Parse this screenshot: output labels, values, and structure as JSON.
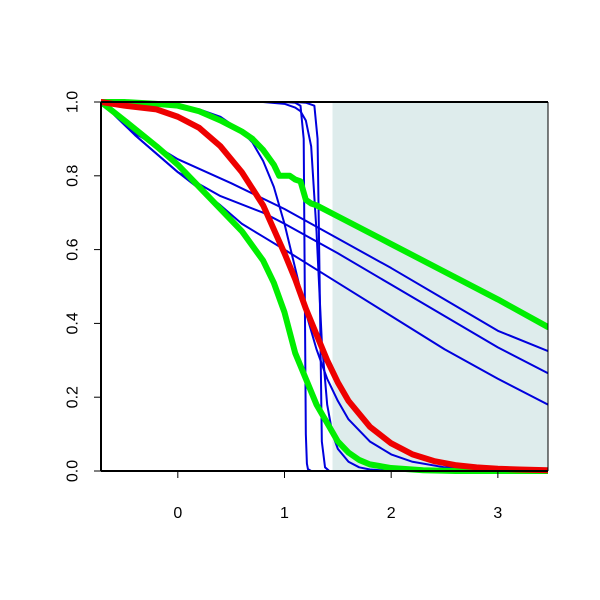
{
  "chart_data": {
    "type": "line",
    "title": "",
    "xlabel": "",
    "ylabel": "",
    "xlim": [
      -0.72,
      3.47
    ],
    "ylim": [
      0,
      1
    ],
    "x_ticks": [
      0,
      1,
      2,
      3
    ],
    "x_tick_labels": [
      "0",
      "1",
      "2",
      "3"
    ],
    "y_ticks": [
      0,
      0.2,
      0.4,
      0.6,
      0.8,
      1
    ],
    "y_tick_labels": [
      "0.0",
      "0.2",
      "0.4",
      "0.6",
      "0.8",
      "1.0"
    ],
    "grid": false,
    "legend": "none",
    "shaded_region": {
      "x_start": 1.45,
      "x_end": 3.47,
      "color": "#deecec"
    },
    "colors": {
      "blue": "#0000dd",
      "red": "#ee0000",
      "green": "#00ee00",
      "axis": "#000000",
      "shade": "#deecec"
    },
    "series": [
      {
        "color": "blue",
        "width": 2,
        "x": [
          -0.72,
          1.0,
          1.1,
          1.15,
          1.18,
          1.19,
          1.2,
          1.21,
          1.22,
          1.25,
          1.3,
          3.47
        ],
        "y": [
          1.0,
          1.0,
          0.998,
          0.99,
          0.9,
          0.5,
          0.1,
          0.02,
          0.005,
          0.0,
          0.0,
          0.0
        ]
      },
      {
        "color": "blue",
        "width": 2,
        "x": [
          -0.72,
          1.1,
          1.2,
          1.28,
          1.31,
          1.33,
          1.35,
          1.38,
          1.42,
          3.47
        ],
        "y": [
          1.0,
          1.0,
          0.998,
          0.99,
          0.9,
          0.5,
          0.08,
          0.01,
          0.0,
          0.0
        ]
      },
      {
        "color": "blue",
        "width": 2,
        "x": [
          -0.72,
          0.8,
          1.0,
          1.1,
          1.15,
          1.2,
          1.25,
          1.3,
          1.35,
          1.4,
          1.45,
          1.5,
          1.6,
          1.7,
          1.8,
          2.0,
          3.47
        ],
        "y": [
          1.0,
          1.0,
          0.995,
          0.985,
          0.975,
          0.95,
          0.88,
          0.65,
          0.35,
          0.18,
          0.1,
          0.06,
          0.025,
          0.01,
          0.004,
          0.0,
          0.0
        ]
      },
      {
        "color": "blue",
        "width": 2,
        "x": [
          -0.72,
          -0.5,
          -0.2,
          0.0,
          0.2,
          0.4,
          0.6,
          0.7,
          0.8,
          0.9,
          1.0,
          1.1,
          1.2,
          1.3,
          1.4,
          1.5,
          1.6,
          1.8,
          2.0,
          2.2,
          2.5,
          3.0,
          3.47
        ],
        "y": [
          1.0,
          0.999,
          0.995,
          0.99,
          0.98,
          0.96,
          0.92,
          0.89,
          0.84,
          0.77,
          0.67,
          0.55,
          0.43,
          0.33,
          0.25,
          0.19,
          0.14,
          0.08,
          0.045,
          0.025,
          0.01,
          0.003,
          0.001
        ]
      },
      {
        "color": "blue",
        "width": 2,
        "x": [
          -0.72,
          -0.4,
          0.0,
          0.4,
          0.6,
          0.8,
          1.0,
          1.5,
          2.0,
          2.5,
          3.0,
          3.47
        ],
        "y": [
          1.0,
          0.91,
          0.81,
          0.72,
          0.67,
          0.635,
          0.6,
          0.51,
          0.42,
          0.33,
          0.25,
          0.18
        ]
      },
      {
        "color": "blue",
        "width": 2,
        "x": [
          -0.72,
          -0.4,
          0.0,
          0.4,
          0.8,
          1.0,
          1.5,
          2.0,
          2.5,
          3.0,
          3.47
        ],
        "y": [
          1.0,
          0.91,
          0.81,
          0.745,
          0.7,
          0.67,
          0.59,
          0.505,
          0.42,
          0.335,
          0.265
        ]
      },
      {
        "color": "blue",
        "width": 2,
        "x": [
          -0.72,
          -0.4,
          0.0,
          0.5,
          1.0,
          1.5,
          2.0,
          2.5,
          3.0,
          3.47
        ],
        "y": [
          1.0,
          0.915,
          0.845,
          0.78,
          0.71,
          0.63,
          0.55,
          0.465,
          0.38,
          0.325
        ]
      },
      {
        "color": "green",
        "width": 6,
        "x": [
          -0.72,
          -0.5,
          -0.2,
          0.0,
          0.2,
          0.4,
          0.6,
          0.7,
          0.75,
          0.8,
          0.9,
          0.95,
          1.0,
          1.05,
          1.1,
          1.15,
          1.2,
          1.25,
          1.3,
          1.5,
          2.0,
          2.5,
          3.0,
          3.47
        ],
        "y": [
          1.0,
          1.0,
          0.995,
          0.99,
          0.975,
          0.95,
          0.92,
          0.9,
          0.885,
          0.87,
          0.83,
          0.8,
          0.8,
          0.8,
          0.79,
          0.785,
          0.735,
          0.725,
          0.72,
          0.69,
          0.615,
          0.54,
          0.465,
          0.39
        ]
      },
      {
        "color": "green",
        "width": 6,
        "x": [
          -0.72,
          -0.5,
          -0.2,
          0.0,
          0.2,
          0.4,
          0.6,
          0.8,
          0.9,
          1.0,
          1.1,
          1.2,
          1.3,
          1.4,
          1.5,
          1.6,
          1.7,
          1.8,
          2.0,
          2.3,
          2.6,
          3.0,
          3.47
        ],
        "y": [
          1.0,
          0.95,
          0.88,
          0.83,
          0.77,
          0.71,
          0.65,
          0.57,
          0.51,
          0.43,
          0.32,
          0.25,
          0.18,
          0.13,
          0.08,
          0.05,
          0.03,
          0.018,
          0.008,
          0.002,
          0.0,
          0.0,
          0.0
        ]
      },
      {
        "color": "red",
        "width": 6,
        "x": [
          -0.72,
          -0.5,
          -0.2,
          0.0,
          0.2,
          0.4,
          0.6,
          0.8,
          1.0,
          1.1,
          1.2,
          1.3,
          1.4,
          1.5,
          1.6,
          1.8,
          2.0,
          2.2,
          2.4,
          2.6,
          2.8,
          3.0,
          3.2,
          3.47
        ],
        "y": [
          1.0,
          0.99,
          0.98,
          0.96,
          0.93,
          0.88,
          0.81,
          0.72,
          0.59,
          0.52,
          0.44,
          0.37,
          0.3,
          0.24,
          0.19,
          0.12,
          0.075,
          0.045,
          0.027,
          0.016,
          0.01,
          0.006,
          0.004,
          0.002
        ]
      }
    ]
  }
}
